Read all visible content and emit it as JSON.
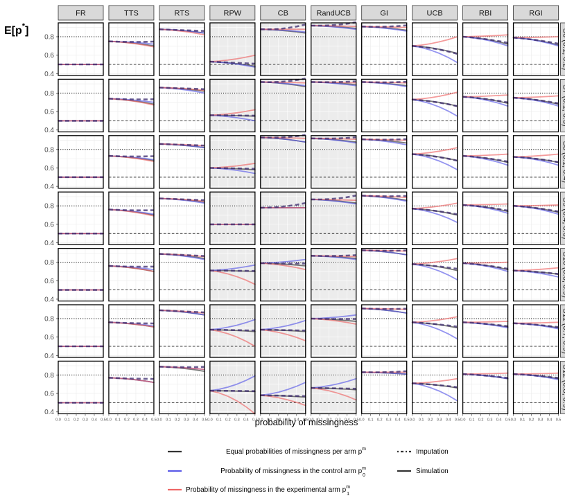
{
  "chart_data": {
    "type": "line",
    "ylabel": "E[p*]",
    "xlabel": "probability of missingness",
    "x": [
      0.0,
      0.1,
      0.2,
      0.3,
      0.4,
      0.5
    ],
    "x_tick_labels": [
      "0.0",
      "0.1",
      "0.2",
      "0.3",
      "0.4",
      "0.5"
    ],
    "ylim": [
      0.38,
      0.95
    ],
    "y_ticks": [
      0.4,
      0.6,
      0.8
    ],
    "y_tick_labels": [
      "0.4",
      "0.6",
      "0.8"
    ],
    "columns": [
      "FR",
      "TTS",
      "RTS",
      "RPW",
      "CB",
      "RandUCB",
      "GI",
      "UCB",
      "RBI",
      "RGI"
    ],
    "shaded_columns": [
      "RPW",
      "CB",
      "RandUCB"
    ],
    "rows": [
      "S6 (0.1, 0.2)",
      "S7 (0.1, 0.3)",
      "S8 (0.1, 0.4)",
      "S9 (0.4, 0.6)",
      "S10 (0.6, 0.9)",
      "S11 (0.7, 0.9)",
      "S12 (0.8, 0.9)"
    ],
    "reference_lines": {
      "dotted": 0.8,
      "dashed": 0.5
    },
    "series_colors": {
      "equal": "#333333",
      "control": "#5b5be8",
      "experimental": "#ee6666"
    },
    "panels": [
      [
        {
          "b": 0.5,
          "e": 0.5,
          "c": 0.5,
          "x": 0.5,
          "i": 0
        },
        {
          "b": 0.75,
          "e": 0.7,
          "c": 0.72,
          "x": 0.69,
          "i": 0.02
        },
        {
          "b": 0.88,
          "e": 0.84,
          "c": 0.84,
          "x": 0.82,
          "i": 0
        },
        {
          "b": 0.53,
          "e": 0.48,
          "c": 0.47,
          "x": 0.6,
          "i": 0
        },
        {
          "b": 0.88,
          "e": 0.84,
          "c": 0.85,
          "x": 0.88,
          "i": 0.07
        },
        {
          "b": 0.92,
          "e": 0.89,
          "c": 0.88,
          "x": 0.91,
          "i": 0.05
        },
        {
          "b": 0.91,
          "e": 0.87,
          "c": 0.86,
          "x": 0.9,
          "i": 0.03
        },
        {
          "b": 0.7,
          "e": 0.62,
          "c": 0.52,
          "x": 0.8,
          "i": -0.05
        },
        {
          "b": 0.8,
          "e": 0.72,
          "c": 0.7,
          "x": 0.82,
          "i": -0.03
        },
        {
          "b": 0.79,
          "e": 0.71,
          "c": 0.7,
          "x": 0.8,
          "i": -0.03
        }
      ],
      [
        {
          "b": 0.5,
          "e": 0.5,
          "c": 0.5,
          "x": 0.5,
          "i": 0
        },
        {
          "b": 0.74,
          "e": 0.68,
          "c": 0.7,
          "x": 0.67,
          "i": 0.02
        },
        {
          "b": 0.86,
          "e": 0.82,
          "c": 0.8,
          "x": 0.83,
          "i": 0
        },
        {
          "b": 0.56,
          "e": 0.55,
          "c": 0.5,
          "x": 0.62,
          "i": 0
        },
        {
          "b": 0.92,
          "e": 0.87,
          "c": 0.88,
          "x": 0.91,
          "i": 0.06
        },
        {
          "b": 0.92,
          "e": 0.89,
          "c": 0.88,
          "x": 0.91,
          "i": 0.02
        },
        {
          "b": 0.92,
          "e": 0.88,
          "c": 0.87,
          "x": 0.91,
          "i": 0.02
        },
        {
          "b": 0.73,
          "e": 0.66,
          "c": 0.55,
          "x": 0.81,
          "i": -0.04
        },
        {
          "b": 0.76,
          "e": 0.69,
          "c": 0.66,
          "x": 0.78,
          "i": -0.03
        },
        {
          "b": 0.75,
          "e": 0.68,
          "c": 0.66,
          "x": 0.77,
          "i": -0.03
        }
      ],
      [
        {
          "b": 0.5,
          "e": 0.5,
          "c": 0.5,
          "x": 0.5,
          "i": 0
        },
        {
          "b": 0.73,
          "e": 0.68,
          "c": 0.69,
          "x": 0.67,
          "i": 0.02
        },
        {
          "b": 0.86,
          "e": 0.82,
          "c": 0.82,
          "x": 0.84,
          "i": 0
        },
        {
          "b": 0.6,
          "e": 0.58,
          "c": 0.54,
          "x": 0.65,
          "i": 0
        },
        {
          "b": 0.93,
          "e": 0.88,
          "c": 0.88,
          "x": 0.92,
          "i": 0.05
        },
        {
          "b": 0.92,
          "e": 0.88,
          "c": 0.87,
          "x": 0.91,
          "i": 0.03
        },
        {
          "b": 0.91,
          "e": 0.87,
          "c": 0.85,
          "x": 0.9,
          "i": 0.02
        },
        {
          "b": 0.75,
          "e": 0.68,
          "c": 0.58,
          "x": 0.82,
          "i": -0.04
        },
        {
          "b": 0.73,
          "e": 0.66,
          "c": 0.63,
          "x": 0.75,
          "i": -0.03
        },
        {
          "b": 0.72,
          "e": 0.66,
          "c": 0.63,
          "x": 0.75,
          "i": -0.03
        }
      ],
      [
        {
          "b": 0.5,
          "e": 0.5,
          "c": 0.5,
          "x": 0.5,
          "i": 0
        },
        {
          "b": 0.76,
          "e": 0.7,
          "c": 0.71,
          "x": 0.69,
          "i": 0.02
        },
        {
          "b": 0.88,
          "e": 0.84,
          "c": 0.83,
          "x": 0.85,
          "i": 0
        },
        {
          "b": 0.6,
          "e": 0.6,
          "c": 0.6,
          "x": 0.6,
          "i": 0
        },
        {
          "b": 0.78,
          "e": 0.78,
          "c": 0.78,
          "x": 0.78,
          "i": 0.05
        },
        {
          "b": 0.87,
          "e": 0.83,
          "c": 0.82,
          "x": 0.86,
          "i": 0.06
        },
        {
          "b": 0.91,
          "e": 0.86,
          "c": 0.85,
          "x": 0.89,
          "i": 0.02
        },
        {
          "b": 0.77,
          "e": 0.7,
          "c": 0.62,
          "x": 0.83,
          "i": -0.03
        },
        {
          "b": 0.81,
          "e": 0.74,
          "c": 0.72,
          "x": 0.82,
          "i": -0.03
        },
        {
          "b": 0.8,
          "e": 0.73,
          "c": 0.71,
          "x": 0.81,
          "i": -0.03
        }
      ],
      [
        {
          "b": 0.5,
          "e": 0.5,
          "c": 0.5,
          "x": 0.5,
          "i": 0
        },
        {
          "b": 0.76,
          "e": 0.7,
          "c": 0.72,
          "x": 0.7,
          "i": 0.02
        },
        {
          "b": 0.89,
          "e": 0.84,
          "c": 0.83,
          "x": 0.86,
          "i": 0
        },
        {
          "b": 0.71,
          "e": 0.7,
          "c": 0.77,
          "x": 0.56,
          "i": 0
        },
        {
          "b": 0.79,
          "e": 0.76,
          "c": 0.83,
          "x": 0.72,
          "i": 0.01
        },
        {
          "b": 0.87,
          "e": 0.84,
          "c": 0.83,
          "x": 0.86,
          "i": 0.02
        },
        {
          "b": 0.93,
          "e": 0.88,
          "c": 0.88,
          "x": 0.92,
          "i": 0.02
        },
        {
          "b": 0.78,
          "e": 0.71,
          "c": 0.61,
          "x": 0.84,
          "i": -0.02
        },
        {
          "b": 0.79,
          "e": 0.72,
          "c": 0.7,
          "x": 0.8,
          "i": -0.03
        },
        {
          "b": 0.71,
          "e": 0.67,
          "c": 0.64,
          "x": 0.74,
          "i": -0.02
        }
      ],
      [
        {
          "b": 0.5,
          "e": 0.5,
          "c": 0.5,
          "x": 0.5,
          "i": 0
        },
        {
          "b": 0.76,
          "e": 0.71,
          "c": 0.72,
          "x": 0.71,
          "i": 0.01
        },
        {
          "b": 0.89,
          "e": 0.84,
          "c": 0.84,
          "x": 0.86,
          "i": 0
        },
        {
          "b": 0.68,
          "e": 0.66,
          "c": 0.79,
          "x": 0.5,
          "i": 0
        },
        {
          "b": 0.68,
          "e": 0.66,
          "c": 0.78,
          "x": 0.56,
          "i": 0
        },
        {
          "b": 0.8,
          "e": 0.77,
          "c": 0.84,
          "x": 0.74,
          "i": 0.01
        },
        {
          "b": 0.91,
          "e": 0.86,
          "c": 0.86,
          "x": 0.9,
          "i": 0.02
        },
        {
          "b": 0.76,
          "e": 0.7,
          "c": 0.58,
          "x": 0.82,
          "i": -0.02
        },
        {
          "b": 0.76,
          "e": 0.71,
          "c": 0.7,
          "x": 0.77,
          "i": -0.02
        },
        {
          "b": 0.75,
          "e": 0.7,
          "c": 0.69,
          "x": 0.76,
          "i": -0.02
        }
      ],
      [
        {
          "b": 0.5,
          "e": 0.5,
          "c": 0.5,
          "x": 0.5,
          "i": 0
        },
        {
          "b": 0.77,
          "e": 0.72,
          "c": 0.72,
          "x": 0.72,
          "i": 0.01
        },
        {
          "b": 0.89,
          "e": 0.84,
          "c": 0.86,
          "x": 0.86,
          "i": 0.02
        },
        {
          "b": 0.63,
          "e": 0.62,
          "c": 0.79,
          "x": 0.38,
          "i": 0
        },
        {
          "b": 0.58,
          "e": 0.56,
          "c": 0.72,
          "x": 0.47,
          "i": 0
        },
        {
          "b": 0.66,
          "e": 0.64,
          "c": 0.76,
          "x": 0.53,
          "i": 0
        },
        {
          "b": 0.83,
          "e": 0.81,
          "c": 0.81,
          "x": 0.83,
          "i": 0.02
        },
        {
          "b": 0.71,
          "e": 0.66,
          "c": 0.52,
          "x": 0.76,
          "i": -0.02
        },
        {
          "b": 0.81,
          "e": 0.76,
          "c": 0.76,
          "x": 0.82,
          "i": -0.02
        },
        {
          "b": 0.81,
          "e": 0.76,
          "c": 0.75,
          "x": 0.82,
          "i": -0.02
        }
      ]
    ]
  },
  "legend": {
    "equal": {
      "label": "Equal probabilities of missingness per arm p",
      "sup": "m"
    },
    "control": {
      "label": "Probability of missingness in the control arm p",
      "sup": "m",
      "sub": "0"
    },
    "experimental": {
      "label": "Probability of missingness in the experimental arm p",
      "sup": "m",
      "sub": "1"
    },
    "imputation": {
      "label": "Imputation"
    },
    "simulation": {
      "label": "Simulation"
    }
  }
}
